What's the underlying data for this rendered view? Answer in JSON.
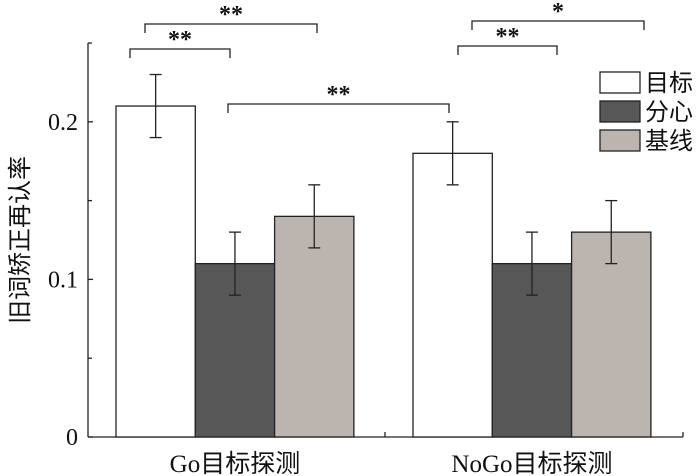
{
  "chart_data": {
    "type": "bar",
    "ylabel": "旧词矫正再认率",
    "xlabel": "",
    "ylim": [
      0,
      0.25
    ],
    "yticks_major": [
      0,
      0.1,
      0.2
    ],
    "ytick_labels": [
      "0",
      "0.1",
      "0.2"
    ],
    "yticks_minor": [
      0.05,
      0.15
    ],
    "categories": [
      "Go目标探测",
      "NoGo目标探测"
    ],
    "series": [
      {
        "name": "目标",
        "color": "#ffffff",
        "values": [
          0.21,
          0.18
        ],
        "errors": [
          0.02,
          0.02
        ]
      },
      {
        "name": "分心",
        "color": "#575757",
        "values": [
          0.11,
          0.11
        ],
        "errors": [
          0.02,
          0.02
        ]
      },
      {
        "name": "基线",
        "color": "#bcb4ae",
        "values": [
          0.14,
          0.13
        ],
        "errors": [
          0.02,
          0.02
        ]
      }
    ],
    "legend_position": "top-right",
    "grid": false,
    "significance": [
      {
        "from": [
          0,
          0
        ],
        "to": [
          0,
          1
        ],
        "label": "**"
      },
      {
        "from": [
          0,
          0
        ],
        "to": [
          0,
          2
        ],
        "label": "**"
      },
      {
        "from": [
          0,
          1
        ],
        "to": [
          1,
          0
        ],
        "label": "**"
      },
      {
        "from": [
          1,
          0
        ],
        "to": [
          1,
          1
        ],
        "label": "**"
      },
      {
        "from": [
          1,
          0
        ],
        "to": [
          1,
          2
        ],
        "label": "*"
      }
    ]
  }
}
